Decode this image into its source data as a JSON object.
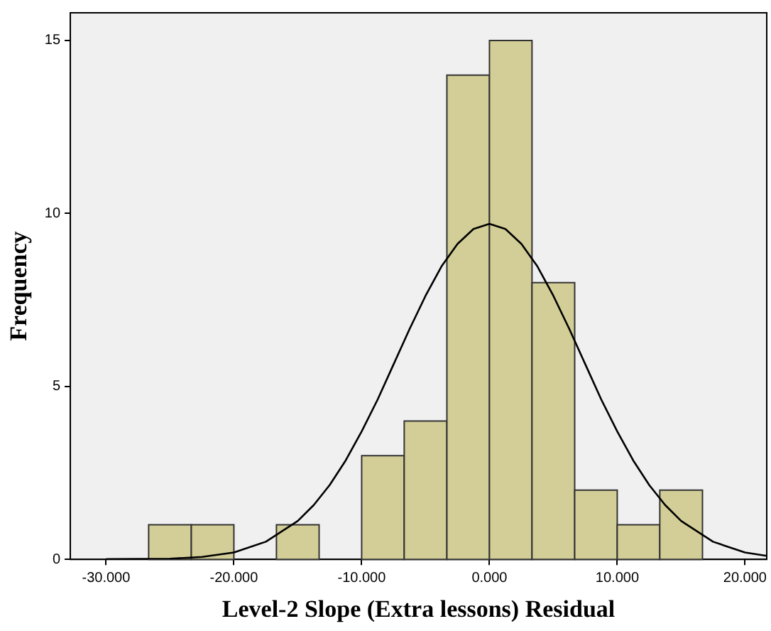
{
  "chart_data": {
    "type": "histogram",
    "xlabel": "Level-2 Slope (Extra lessons) Residual",
    "ylabel": "Frequency",
    "bins": [
      -26.67,
      -23.33,
      -20,
      -16.67,
      -13.33,
      -10,
      -6.67,
      -3.33,
      0,
      3.33,
      6.67,
      10,
      13.33,
      16.67
    ],
    "values": [
      1,
      1,
      0,
      1,
      0,
      3,
      4,
      14,
      15,
      8,
      2,
      1,
      2
    ],
    "color": "#d3ce97",
    "series": [
      {
        "type": "line",
        "color": "#000000",
        "x": [
          -30,
          -25,
          -22.5,
          -20,
          -17.5,
          -15,
          -13.75,
          -12.5,
          -11.25,
          -10,
          -8.75,
          -7.5,
          -6.25,
          -5,
          -3.75,
          -2.5,
          -1.25,
          0,
          1.25,
          2.5,
          3.75,
          5,
          6.25,
          7.5,
          8.75,
          10,
          11.25,
          12.5,
          13.75,
          15,
          17.5,
          20,
          21.7
        ],
        "values": [
          0.01,
          0.02,
          0.07,
          0.2,
          0.51,
          1.11,
          1.57,
          2.15,
          2.86,
          3.7,
          4.62,
          5.64,
          6.66,
          7.62,
          8.47,
          9.12,
          9.55,
          9.7,
          9.55,
          9.12,
          8.47,
          7.62,
          6.66,
          5.64,
          4.62,
          3.7,
          2.86,
          2.15,
          1.57,
          1.11,
          0.51,
          0.2,
          0.1
        ]
      }
    ],
    "xlim": [
      -32.8,
      21.7
    ],
    "ylim": [
      0,
      15.8
    ],
    "xticks": [
      {
        "value": -30,
        "label": "-30.000"
      },
      {
        "value": -20,
        "label": "-20.000"
      },
      {
        "value": -10,
        "label": "-10.000"
      },
      {
        "value": 0,
        "label": "0.000"
      },
      {
        "value": 10,
        "label": "10.000"
      },
      {
        "value": 20,
        "label": "20.000"
      }
    ],
    "yticks": [
      0,
      5,
      10,
      15
    ],
    "grid": false,
    "legend": false,
    "marker": "none"
  }
}
